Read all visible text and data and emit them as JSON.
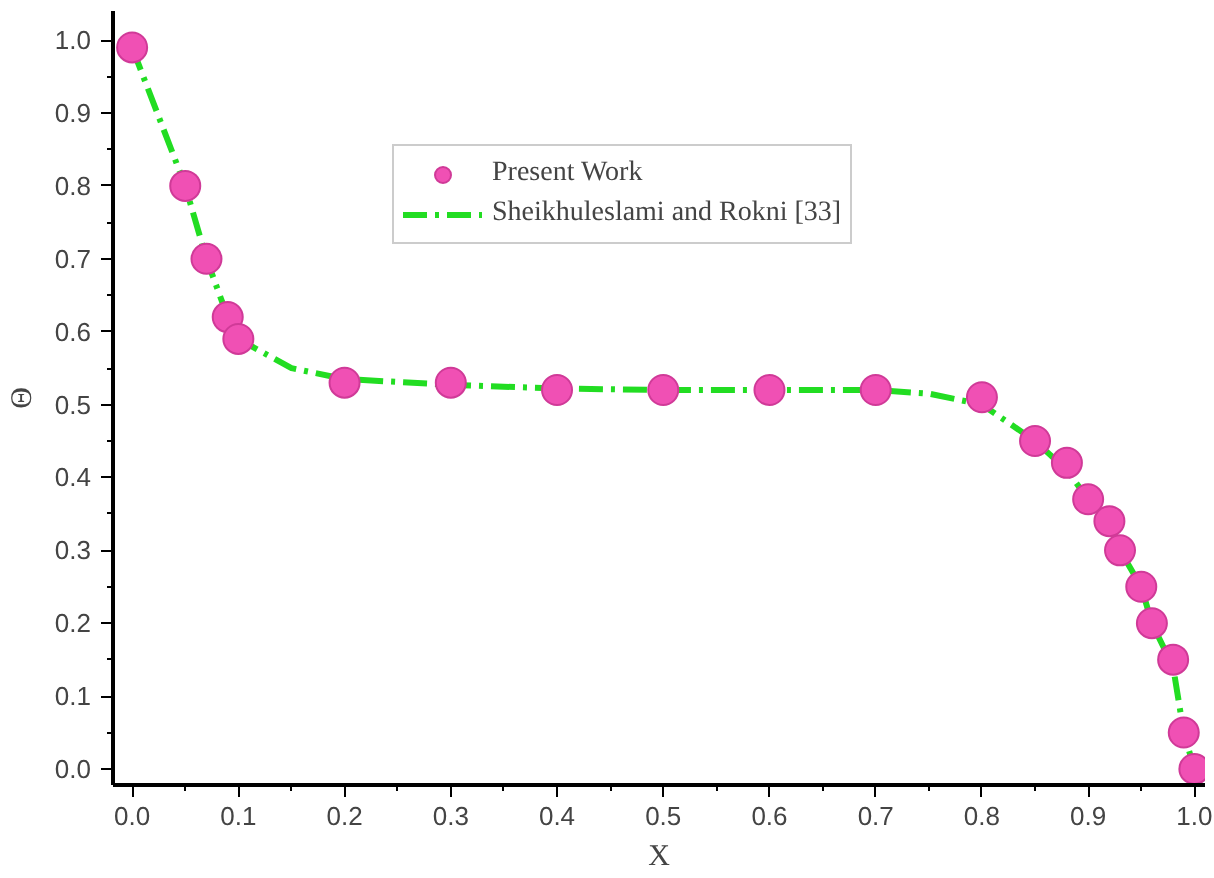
{
  "chart_data": {
    "type": "scatter",
    "xlabel": "X",
    "ylabel": "Θ",
    "xlim": [
      -0.018,
      1.01
    ],
    "ylim": [
      -0.022,
      1.04
    ],
    "xticks": [
      {
        "value": 0,
        "label": "0.0"
      },
      0.1,
      0.2,
      0.3,
      0.4,
      0.5,
      0.6,
      0.7,
      0.8,
      0.9,
      {
        "value": 1,
        "label": "1.0"
      }
    ],
    "yticks": [
      {
        "value": 0,
        "label": "0.0"
      },
      0.1,
      0.2,
      0.3,
      0.4,
      0.5,
      0.6,
      0.7,
      0.8,
      0.9,
      {
        "value": 1,
        "label": "1.0"
      }
    ],
    "grid": false,
    "legend": "top right",
    "series": [
      {
        "name": "Present Work",
        "marker": "circle",
        "color": "#f050b4",
        "x": [
          0,
          0.05,
          0.07,
          0.09,
          0.1,
          0.2,
          0.3,
          0.4,
          0.5,
          0.6,
          0.7,
          0.8,
          0.85,
          0.88,
          0.9,
          0.92,
          0.93,
          0.95,
          0.96,
          0.98,
          0.99,
          1.0
        ],
        "values": [
          0.99,
          0.8,
          0.7,
          0.62,
          0.59,
          0.53,
          0.53,
          0.52,
          0.52,
          0.52,
          0.52,
          0.51,
          0.45,
          0.42,
          0.37,
          0.34,
          0.3,
          0.25,
          0.2,
          0.15,
          0.05,
          0.0
        ]
      },
      {
        "name": "Sheikhuleslami and Rokni [33]",
        "type": "line",
        "line_style": "dashdot",
        "color": "#22dd22",
        "x": [
          0,
          0.05,
          0.07,
          0.09,
          0.1,
          0.15,
          0.2,
          0.3,
          0.4,
          0.5,
          0.6,
          0.7,
          0.75,
          0.8,
          0.85,
          0.88,
          0.9,
          0.92,
          0.93,
          0.95,
          0.96,
          0.98,
          0.99,
          1.0
        ],
        "values": [
          0.99,
          0.8,
          0.7,
          0.62,
          0.59,
          0.55,
          0.535,
          0.527,
          0.522,
          0.52,
          0.52,
          0.52,
          0.515,
          0.5,
          0.45,
          0.41,
          0.37,
          0.34,
          0.3,
          0.25,
          0.2,
          0.14,
          0.05,
          0.0
        ]
      }
    ]
  }
}
